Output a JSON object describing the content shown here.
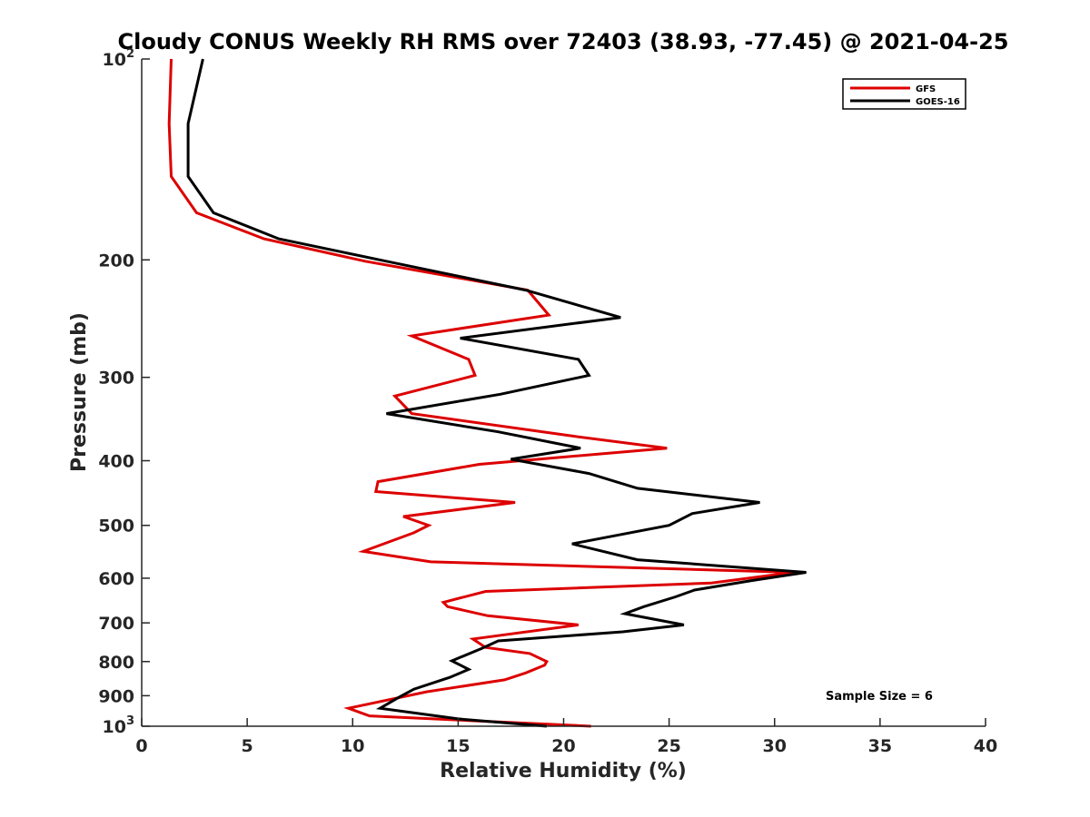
{
  "chart_data": {
    "type": "line",
    "title": "Cloudy CONUS Weekly RH RMS over 72403 (38.93, -77.45) @ 2021-04-25",
    "xlabel": "Relative Humidity (%)",
    "ylabel": "Pressure (mb)",
    "xlim": [
      0,
      40
    ],
    "ylim": [
      100,
      1000
    ],
    "y_scale": "log",
    "y_reversed": true,
    "grid": false,
    "legend_position": "top-right",
    "annotation": "Sample Size = 6",
    "x_ticks": [
      "0",
      "5",
      "10",
      "15",
      "20",
      "25",
      "30",
      "35",
      "40"
    ],
    "y_ticks": [
      {
        "value": 100,
        "base": "10",
        "exp": "2"
      },
      {
        "value": 200,
        "base": "200",
        "exp": ""
      },
      {
        "value": 300,
        "base": "300",
        "exp": ""
      },
      {
        "value": 400,
        "base": "400",
        "exp": ""
      },
      {
        "value": 500,
        "base": "500",
        "exp": ""
      },
      {
        "value": 600,
        "base": "600",
        "exp": ""
      },
      {
        "value": 700,
        "base": "700",
        "exp": ""
      },
      {
        "value": 800,
        "base": "800",
        "exp": ""
      },
      {
        "value": 900,
        "base": "900",
        "exp": ""
      },
      {
        "value": 1000,
        "base": "10",
        "exp": "3"
      }
    ],
    "series": [
      {
        "name": "GFS",
        "color": "#dd0000",
        "points": [
          [
            1.4,
            100
          ],
          [
            1.3,
            125
          ],
          [
            1.4,
            150
          ],
          [
            2.6,
            170
          ],
          [
            5.8,
            186
          ],
          [
            10.6,
            201
          ],
          [
            18.3,
            222
          ],
          [
            19.3,
            242
          ],
          [
            12.8,
            260
          ],
          [
            15.5,
            282
          ],
          [
            15.8,
            298
          ],
          [
            12.0,
            320
          ],
          [
            12.8,
            340
          ],
          [
            20.6,
            368
          ],
          [
            24.9,
            383
          ],
          [
            16.0,
            405
          ],
          [
            11.2,
            430
          ],
          [
            11.1,
            445
          ],
          [
            17.7,
            462
          ],
          [
            12.4,
            485
          ],
          [
            13.6,
            500
          ],
          [
            12.9,
            513
          ],
          [
            10.5,
            547
          ],
          [
            13.7,
            567
          ],
          [
            30.9,
            588
          ],
          [
            27.0,
            610
          ],
          [
            16.3,
            628
          ],
          [
            14.3,
            652
          ],
          [
            14.5,
            662
          ],
          [
            16.4,
            683
          ],
          [
            20.7,
            705
          ],
          [
            15.7,
            740
          ],
          [
            16.3,
            762
          ],
          [
            18.4,
            778
          ],
          [
            19.2,
            800
          ],
          [
            19.1,
            810
          ],
          [
            18.2,
            832
          ],
          [
            17.2,
            852
          ],
          [
            13.5,
            888
          ],
          [
            9.8,
            940
          ],
          [
            10.8,
            965
          ],
          [
            21.3,
            1000
          ]
        ]
      },
      {
        "name": "GOES-16",
        "color": "#000000",
        "points": [
          [
            2.9,
            100
          ],
          [
            2.2,
            125
          ],
          [
            2.2,
            150
          ],
          [
            3.4,
            170
          ],
          [
            6.5,
            186
          ],
          [
            11.6,
            201
          ],
          [
            18.2,
            222
          ],
          [
            22.7,
            244
          ],
          [
            15.1,
            262
          ],
          [
            20.7,
            282
          ],
          [
            21.2,
            298
          ],
          [
            17.0,
            318
          ],
          [
            11.6,
            340
          ],
          [
            16.9,
            362
          ],
          [
            20.8,
            383
          ],
          [
            17.5,
            398
          ],
          [
            21.2,
            418
          ],
          [
            23.5,
            440
          ],
          [
            29.3,
            462
          ],
          [
            26.1,
            480
          ],
          [
            25.0,
            500
          ],
          [
            20.4,
            533
          ],
          [
            23.5,
            563
          ],
          [
            31.5,
            588
          ],
          [
            28.9,
            605
          ],
          [
            26.2,
            625
          ],
          [
            25.3,
            640
          ],
          [
            23.8,
            662
          ],
          [
            22.9,
            678
          ],
          [
            25.7,
            705
          ],
          [
            22.8,
            722
          ],
          [
            16.9,
            745
          ],
          [
            16.1,
            765
          ],
          [
            14.7,
            798
          ],
          [
            15.5,
            822
          ],
          [
            14.6,
            845
          ],
          [
            12.9,
            880
          ],
          [
            12.2,
            905
          ],
          [
            11.3,
            940
          ],
          [
            15.0,
            975
          ],
          [
            19.2,
            1000
          ]
        ]
      }
    ]
  }
}
